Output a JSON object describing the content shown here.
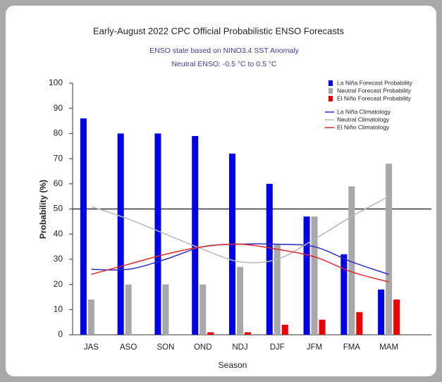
{
  "chart_data": {
    "type": "bar",
    "title": "Early-August 2022 CPC Official Probabilistic ENSO Forecasts",
    "subtitle": [
      "ENSO state based on NINO3.4 SST Anomaly",
      "Neutral ENSO: -0.5 °C to 0.5 °C"
    ],
    "x_label": "Season",
    "y_label": "Probability (%)",
    "categories": [
      "JAS",
      "ASO",
      "SON",
      "OND",
      "NDJ",
      "DJF",
      "JFM",
      "FMA",
      "MAM"
    ],
    "series": [
      {
        "name": "La Niña Forecast Probability",
        "type": "bar",
        "color": "#0000ee",
        "values": [
          86,
          80,
          80,
          79,
          72,
          60,
          47,
          32,
          18
        ]
      },
      {
        "name": "Neutral Forecast Probability",
        "type": "bar",
        "color": "#a8a8a8",
        "values": [
          14,
          20,
          20,
          20,
          27,
          36,
          47,
          59,
          68
        ]
      },
      {
        "name": "El Niño Forecast Probability",
        "type": "bar",
        "color": "#ee0000",
        "values": [
          0,
          0,
          0,
          1,
          1,
          4,
          6,
          9,
          14
        ]
      },
      {
        "name": "La Niña Climatology",
        "type": "line",
        "color": "#2b2bc8",
        "values": [
          26,
          26,
          30,
          35,
          36,
          36,
          35,
          29,
          24
        ]
      },
      {
        "name": "Neutral Climatology",
        "type": "line",
        "color": "#b8b8b8",
        "values": [
          51,
          46,
          40,
          34,
          29,
          30,
          38,
          47,
          55
        ]
      },
      {
        "name": "El Niño Climatology",
        "type": "line",
        "color": "#e02828",
        "values": [
          24,
          28,
          32,
          35,
          36,
          34,
          31,
          25,
          21
        ]
      }
    ],
    "reference_line": 50,
    "ylim": [
      0,
      100
    ],
    "yticks": [
      0,
      10,
      20,
      30,
      40,
      50,
      60,
      70,
      80,
      90,
      100
    ],
    "legend": "upper right"
  }
}
